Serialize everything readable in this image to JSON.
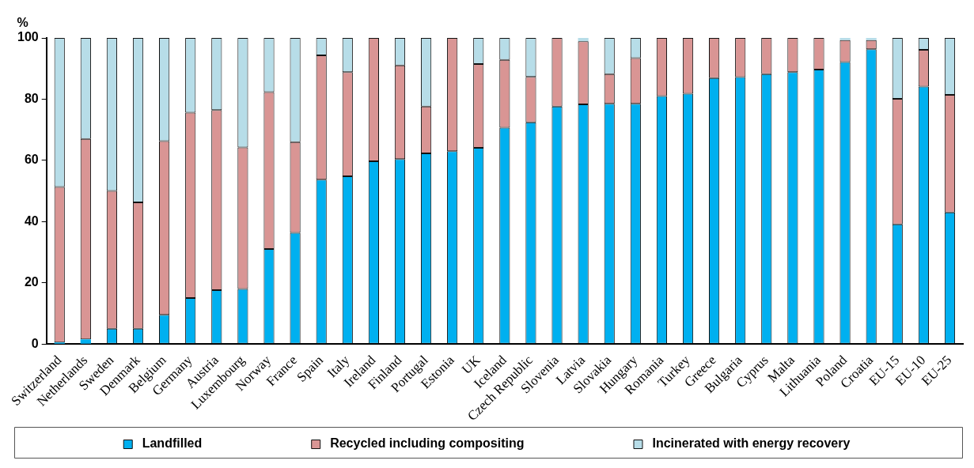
{
  "chart_data": {
    "type": "bar",
    "stacked": true,
    "ylabel": "%",
    "categories": [
      "Switzerland",
      "Netherlands",
      "Sweden",
      "Denmark",
      "Belgium",
      "Germany",
      "Austria",
      "Luxembourg",
      "Norway",
      "France",
      "Spain",
      "Italy",
      "Ireland",
      "Finland",
      "Portugal",
      "Estonia",
      "UK",
      "Iceland",
      "Czech Republic",
      "Slovenia",
      "Latvia",
      "Slovakia",
      "Hungary",
      "Romania",
      "Turkey",
      "Greece",
      "Bulgaria",
      "Cyprus",
      "Malta",
      "Lithuania",
      "Poland",
      "Croatia",
      "EU-15",
      "EU-10",
      "EU-25"
    ],
    "series": [
      {
        "name": "Landfilled",
        "color": "#00b0f0",
        "values": [
          0.5,
          1.5,
          5,
          5,
          9.5,
          15,
          17.6,
          18,
          31,
          36.3,
          53.7,
          54.8,
          59.7,
          60.4,
          62.3,
          63,
          64.1,
          70.7,
          72.4,
          77.6,
          78.3,
          78.5,
          78.5,
          81,
          81.8,
          86.9,
          87.2,
          88.2,
          88.8,
          89.7,
          92.1,
          96.3,
          39.1,
          84.1,
          43
        ]
      },
      {
        "name": "Recycled including compositing",
        "color": "#d99594",
        "values": [
          50.8,
          65.5,
          45,
          41.3,
          56.8,
          60.6,
          58.8,
          46.2,
          51.3,
          29.7,
          40.6,
          34,
          40.3,
          30.6,
          15.3,
          37,
          27.4,
          22.1,
          14.9,
          22.4,
          20.6,
          9.7,
          14.9,
          19,
          18.2,
          13.1,
          12.8,
          11.8,
          11.2,
          10.3,
          7.2,
          3,
          41,
          12,
          38.4
        ]
      },
      {
        "name": "Incinerated with energy recovery",
        "color": "#b7dde8",
        "values": [
          48.7,
          33,
          50,
          53.7,
          33.7,
          24.4,
          23.6,
          35.8,
          17.7,
          34,
          5.7,
          11.2,
          0,
          9,
          22.4,
          0,
          8.5,
          7.2,
          12.7,
          0,
          1.1,
          11.8,
          6.6,
          0,
          0,
          0,
          0,
          0,
          0,
          0,
          0.7,
          0.7,
          19.9,
          3.9,
          18.6
        ]
      }
    ],
    "ylim": [
      0,
      100
    ],
    "yticks": [
      0,
      20,
      40,
      60,
      80,
      100
    ],
    "grid": false,
    "legend": "bottom"
  }
}
